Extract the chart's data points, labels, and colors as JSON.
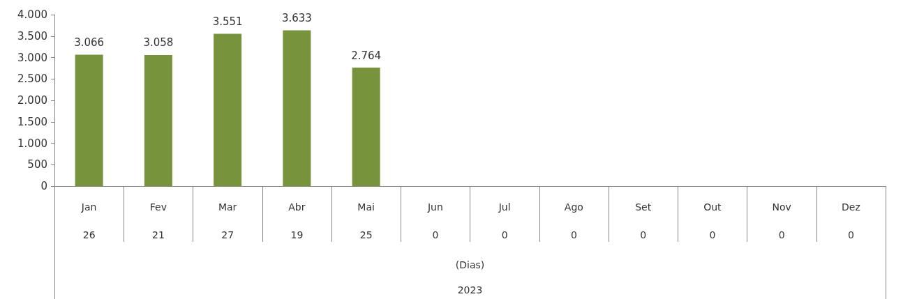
{
  "chart_data": {
    "type": "bar",
    "categories": [
      "Jan",
      "Fev",
      "Mar",
      "Abr",
      "Mai",
      "Jun",
      "Jul",
      "Ago",
      "Set",
      "Out",
      "Nov",
      "Dez"
    ],
    "values": [
      3066,
      3058,
      3551,
      3633,
      2764,
      null,
      null,
      null,
      null,
      null,
      null,
      null
    ],
    "value_labels": [
      "3.066",
      "3.058",
      "3.551",
      "3.633",
      "2.764",
      null,
      null,
      null,
      null,
      null,
      null,
      null
    ],
    "color": "#77933c",
    "ylim": [
      0,
      4000
    ],
    "yticks": [
      0,
      500,
      {
        "value": 1000,
        "label": "1.000"
      },
      {
        "value": 1500,
        "label": "1.500"
      },
      {
        "value": 2000,
        "label": "2.000"
      },
      {
        "value": 2500,
        "label": "2.500"
      },
      {
        "value": 3000,
        "label": "3.000"
      },
      {
        "value": 3500,
        "label": "3.500"
      },
      {
        "value": 4000,
        "label": "4.000"
      }
    ],
    "annotations": [
      "26",
      "21",
      "27",
      "19",
      "25",
      "0",
      "0",
      "0",
      "0",
      "0",
      "0",
      "0",
      "(Dias)",
      "2023"
    ]
  }
}
